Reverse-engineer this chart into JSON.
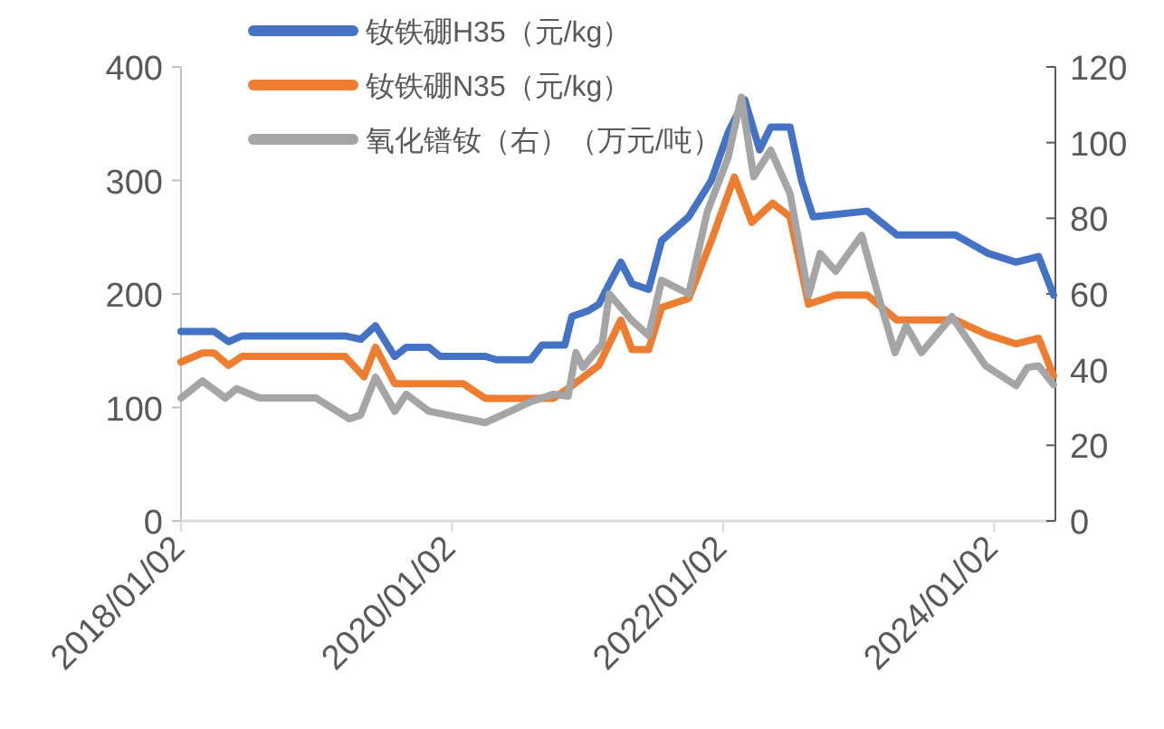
{
  "chart_data": {
    "type": "line",
    "xlim": [
      "2018-01-02",
      "2024-06-15"
    ],
    "xticks": [
      {
        "value": "2018-01-02",
        "label": "2018/01/02"
      },
      {
        "value": "2020-01-02",
        "label": "2020/01/02"
      },
      {
        "value": "2022-01-02",
        "label": "2022/01/02"
      },
      {
        "value": "2024-01-02",
        "label": "2024/01/02"
      }
    ],
    "ylim": [
      0,
      400
    ],
    "yticks": [
      0,
      100,
      200,
      300,
      400
    ],
    "y2lim": [
      0,
      120
    ],
    "y2ticks": [
      0,
      20,
      40,
      60,
      80,
      100,
      120
    ],
    "grid": false,
    "legend": "top left",
    "marker": "none",
    "line_style": "solid",
    "series": [
      {
        "name": "钕铁硼H35（元/kg）",
        "color": "#4472c4",
        "x": [
          "2018-01-02",
          "2018-04-01",
          "2018-05-10",
          "2018-06-15",
          "2019-03-20",
          "2019-05-01",
          "2019-06-10",
          "2019-08-01",
          "2019-09-01",
          "2019-11-01",
          "2019-12-01",
          "2020-04-01",
          "2020-05-01",
          "2020-08-01",
          "2020-09-01",
          "2020-11-01",
          "2020-11-20",
          "2021-01-02",
          "2021-02-01",
          "2021-03-01",
          "2021-04-01",
          "2021-05-01",
          "2021-06-15",
          "2021-07-20",
          "2021-10-01",
          "2021-12-01",
          "2022-01-15",
          "2022-03-01",
          "2022-04-10",
          "2022-05-10",
          "2022-07-01",
          "2022-08-01",
          "2022-09-01",
          "2023-01-25",
          "2023-04-15",
          "2023-09-20",
          "2023-12-15",
          "2024-03-01",
          "2024-05-01",
          "2024-06-10"
        ],
        "values": [
          167,
          167,
          158,
          163,
          163,
          160,
          172,
          145,
          153,
          153,
          145,
          145,
          142,
          142,
          155,
          155,
          180,
          185,
          191,
          209,
          228,
          209,
          204,
          247,
          268,
          300,
          342,
          371,
          327,
          347,
          347,
          300,
          268,
          273,
          252,
          252,
          236,
          228,
          233,
          199
        ]
      },
      {
        "name": "钕铁硼N35（元/kg）",
        "color": "#ed7d31",
        "x": [
          "2018-01-02",
          "2018-03-01",
          "2018-04-01",
          "2018-05-10",
          "2018-06-15",
          "2019-03-20",
          "2019-05-10",
          "2019-06-10",
          "2019-08-01",
          "2019-09-15",
          "2020-02-01",
          "2020-04-01",
          "2020-10-01",
          "2020-11-20",
          "2021-02-01",
          "2021-04-01",
          "2021-05-01",
          "2021-06-15",
          "2021-07-20",
          "2021-10-01",
          "2021-12-01",
          "2022-02-01",
          "2022-03-20",
          "2022-05-15",
          "2022-07-01",
          "2022-08-20",
          "2022-11-01",
          "2023-01-25",
          "2023-04-15",
          "2023-09-20",
          "2023-12-15",
          "2024-03-01",
          "2024-05-01",
          "2024-06-10"
        ],
        "values": [
          140,
          148,
          148,
          137,
          145,
          145,
          127,
          153,
          121,
          121,
          121,
          108,
          108,
          119,
          137,
          177,
          151,
          151,
          188,
          196,
          247,
          303,
          263,
          280,
          268,
          191,
          199,
          199,
          177,
          177,
          164,
          156,
          161,
          128
        ]
      },
      {
        "name": "氧化镨钕（右）（万元/吨）",
        "color": "#a5a5a5",
        "axis": "y2",
        "x": [
          "2018-01-02",
          "2018-03-01",
          "2018-05-01",
          "2018-06-01",
          "2018-08-01",
          "2019-01-01",
          "2019-04-01",
          "2019-05-01",
          "2019-06-10",
          "2019-08-01",
          "2019-09-01",
          "2019-11-01",
          "2020-04-01",
          "2020-06-01",
          "2020-08-01",
          "2020-10-01",
          "2020-11-10",
          "2020-12-01",
          "2020-12-20",
          "2021-02-10",
          "2021-03-01",
          "2021-05-01",
          "2021-06-15",
          "2021-07-20",
          "2021-10-01",
          "2021-11-20",
          "2022-01-15",
          "2022-02-20",
          "2022-03-25",
          "2022-05-10",
          "2022-07-01",
          "2022-08-20",
          "2022-09-20",
          "2022-11-01",
          "2023-01-10",
          "2023-03-01",
          "2023-04-10",
          "2023-05-10",
          "2023-06-20",
          "2023-09-10",
          "2023-12-10",
          "2024-03-01",
          "2024-04-01",
          "2024-05-01",
          "2024-06-10"
        ],
        "values": [
          32.5,
          37,
          32.5,
          35,
          32.5,
          32.5,
          27,
          28,
          38,
          29,
          33.5,
          29,
          26,
          28.7,
          31.5,
          33.5,
          33,
          44.5,
          40.6,
          46.8,
          60,
          53,
          49,
          63.6,
          60,
          81.7,
          96,
          112,
          91,
          98,
          86.5,
          59.7,
          70.7,
          66,
          75.5,
          57.8,
          44.5,
          51.6,
          44.5,
          54,
          41,
          35.8,
          40.6,
          41,
          36
        ]
      }
    ]
  }
}
